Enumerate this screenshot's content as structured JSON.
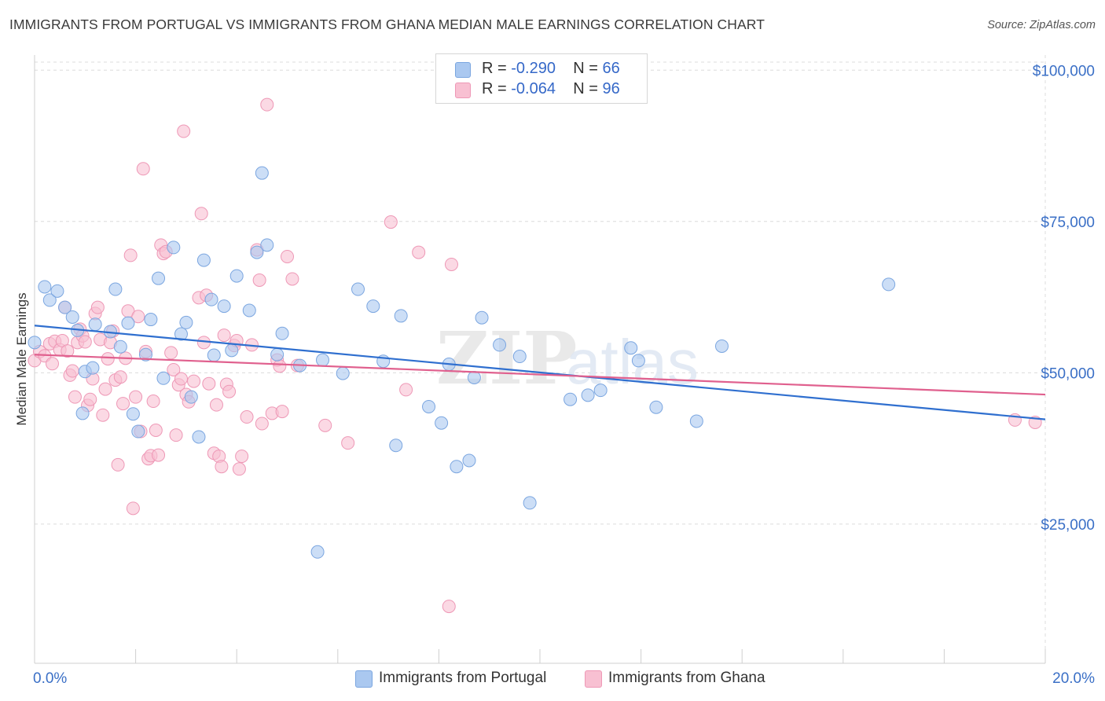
{
  "title": "IMMIGRANTS FROM PORTUGAL VS IMMIGRANTS FROM GHANA MEDIAN MALE EARNINGS CORRELATION CHART",
  "source": "Source: ZipAtlas.com",
  "watermark": "ZIPatlas",
  "legend": {
    "rows": [
      {
        "r_label": "R =",
        "r_value": "-0.290",
        "n_label": "N =",
        "n_value": "66"
      },
      {
        "r_label": "R =",
        "r_value": "-0.064",
        "n_label": "N =",
        "n_value": "96"
      }
    ]
  },
  "bottom_legend": {
    "portugal": "Immigrants from Portugal",
    "ghana": "Immigrants from Ghana"
  },
  "colors": {
    "portugal_fill": "#aac8f0",
    "portugal_stroke": "#7ba6e0",
    "portugal_line": "#2f6fcf",
    "ghana_fill": "#f8c0d2",
    "ghana_stroke": "#ee98b6",
    "ghana_line": "#e0608e",
    "axis_label": "#3a6fc6"
  },
  "chart_data": {
    "type": "scatter",
    "title": "IMMIGRANTS FROM PORTUGAL VS IMMIGRANTS FROM GHANA MEDIAN MALE EARNINGS CORRELATION CHART",
    "xlabel": "",
    "ylabel": "Median Male Earnings",
    "xlim": [
      0,
      20
    ],
    "ylim": [
      2000,
      102500
    ],
    "x_tick_labels": [
      "0.0%",
      "20.0%"
    ],
    "y_ticks": [
      25000,
      50000,
      75000,
      100000
    ],
    "y_tick_labels": [
      "$25,000",
      "$50,000",
      "$75,000",
      "$100,000"
    ],
    "grid": true,
    "legend_position": "top-center",
    "series": [
      {
        "name": "Immigrants from Portugal",
        "r": -0.29,
        "n": 66,
        "trend": [
          [
            0,
            57800
          ],
          [
            20,
            42300
          ]
        ],
        "points": [
          [
            0.0,
            55000
          ],
          [
            0.2,
            64200
          ],
          [
            0.3,
            62000
          ],
          [
            0.45,
            63500
          ],
          [
            0.6,
            60800
          ],
          [
            0.75,
            59200
          ],
          [
            0.85,
            57000
          ],
          [
            0.95,
            43300
          ],
          [
            1.0,
            50200
          ],
          [
            1.15,
            50800
          ],
          [
            1.2,
            58000
          ],
          [
            1.5,
            56800
          ],
          [
            1.6,
            63800
          ],
          [
            1.7,
            54300
          ],
          [
            1.85,
            58200
          ],
          [
            1.95,
            43200
          ],
          [
            2.05,
            40300
          ],
          [
            2.2,
            53000
          ],
          [
            2.3,
            58800
          ],
          [
            2.45,
            65600
          ],
          [
            2.55,
            49100
          ],
          [
            2.75,
            70700
          ],
          [
            2.9,
            56400
          ],
          [
            3.0,
            58300
          ],
          [
            3.1,
            46000
          ],
          [
            3.25,
            39400
          ],
          [
            3.35,
            68600
          ],
          [
            3.5,
            62100
          ],
          [
            3.55,
            52900
          ],
          [
            3.75,
            61000
          ],
          [
            3.9,
            53700
          ],
          [
            4.0,
            66000
          ],
          [
            4.25,
            60300
          ],
          [
            4.4,
            69900
          ],
          [
            4.5,
            83000
          ],
          [
            4.6,
            71100
          ],
          [
            4.8,
            53000
          ],
          [
            4.9,
            56500
          ],
          [
            5.25,
            51200
          ],
          [
            5.6,
            20400
          ],
          [
            5.7,
            52100
          ],
          [
            6.1,
            49900
          ],
          [
            6.4,
            63800
          ],
          [
            6.7,
            61000
          ],
          [
            6.9,
            51900
          ],
          [
            7.15,
            38000
          ],
          [
            7.25,
            59400
          ],
          [
            7.8,
            44400
          ],
          [
            8.05,
            41700
          ],
          [
            8.2,
            51400
          ],
          [
            8.35,
            34500
          ],
          [
            8.6,
            35500
          ],
          [
            8.7,
            49200
          ],
          [
            8.85,
            59100
          ],
          [
            9.2,
            54600
          ],
          [
            9.6,
            52700
          ],
          [
            9.8,
            28500
          ],
          [
            10.6,
            45600
          ],
          [
            10.95,
            46300
          ],
          [
            11.2,
            47100
          ],
          [
            11.8,
            54100
          ],
          [
            11.95,
            52000
          ],
          [
            12.3,
            44300
          ],
          [
            13.1,
            42000
          ],
          [
            13.6,
            54400
          ],
          [
            16.9,
            64600
          ]
        ]
      },
      {
        "name": "Immigrants from Ghana",
        "r": -0.064,
        "n": 96,
        "trend": [
          [
            0,
            53000
          ],
          [
            20,
            46400
          ]
        ],
        "points": [
          [
            0.0,
            52000
          ],
          [
            0.1,
            53500
          ],
          [
            0.2,
            52800
          ],
          [
            0.3,
            54800
          ],
          [
            0.35,
            51500
          ],
          [
            0.4,
            55200
          ],
          [
            0.5,
            53800
          ],
          [
            0.55,
            55300
          ],
          [
            0.6,
            60800
          ],
          [
            0.65,
            53600
          ],
          [
            0.7,
            49600
          ],
          [
            0.75,
            50300
          ],
          [
            0.8,
            46000
          ],
          [
            0.85,
            55000
          ],
          [
            0.9,
            57200
          ],
          [
            0.95,
            56100
          ],
          [
            1.0,
            55100
          ],
          [
            1.05,
            44600
          ],
          [
            1.1,
            45600
          ],
          [
            1.15,
            49000
          ],
          [
            1.2,
            59800
          ],
          [
            1.25,
            60800
          ],
          [
            1.3,
            55500
          ],
          [
            1.35,
            43000
          ],
          [
            1.4,
            47300
          ],
          [
            1.45,
            52300
          ],
          [
            1.5,
            55000
          ],
          [
            1.55,
            56900
          ],
          [
            1.6,
            48800
          ],
          [
            1.65,
            34800
          ],
          [
            1.7,
            49300
          ],
          [
            1.75,
            44900
          ],
          [
            1.8,
            52400
          ],
          [
            1.85,
            60200
          ],
          [
            1.9,
            69400
          ],
          [
            1.95,
            27600
          ],
          [
            2.0,
            46000
          ],
          [
            2.05,
            59300
          ],
          [
            2.1,
            40300
          ],
          [
            2.15,
            83700
          ],
          [
            2.2,
            53500
          ],
          [
            2.25,
            35800
          ],
          [
            2.3,
            36300
          ],
          [
            2.35,
            45300
          ],
          [
            2.4,
            40500
          ],
          [
            2.45,
            36400
          ],
          [
            2.5,
            71100
          ],
          [
            2.55,
            69700
          ],
          [
            2.6,
            70000
          ],
          [
            2.7,
            53300
          ],
          [
            2.75,
            50500
          ],
          [
            2.8,
            39700
          ],
          [
            2.85,
            48000
          ],
          [
            2.9,
            49000
          ],
          [
            2.95,
            89900
          ],
          [
            3.0,
            46400
          ],
          [
            3.05,
            45200
          ],
          [
            3.15,
            48600
          ],
          [
            3.25,
            62400
          ],
          [
            3.3,
            76300
          ],
          [
            3.35,
            55000
          ],
          [
            3.4,
            62800
          ],
          [
            3.45,
            48200
          ],
          [
            3.55,
            36700
          ],
          [
            3.6,
            44700
          ],
          [
            3.65,
            36200
          ],
          [
            3.7,
            34500
          ],
          [
            3.75,
            56200
          ],
          [
            3.8,
            48100
          ],
          [
            3.85,
            46900
          ],
          [
            3.95,
            54500
          ],
          [
            4.0,
            55300
          ],
          [
            4.05,
            34100
          ],
          [
            4.1,
            36200
          ],
          [
            4.2,
            42700
          ],
          [
            4.3,
            54600
          ],
          [
            4.4,
            70300
          ],
          [
            4.45,
            65300
          ],
          [
            4.5,
            41600
          ],
          [
            4.6,
            94300
          ],
          [
            4.7,
            43300
          ],
          [
            4.8,
            52100
          ],
          [
            4.85,
            51100
          ],
          [
            4.9,
            43600
          ],
          [
            5.0,
            69200
          ],
          [
            5.1,
            65500
          ],
          [
            5.2,
            51200
          ],
          [
            5.75,
            41300
          ],
          [
            6.2,
            38400
          ],
          [
            7.05,
            74900
          ],
          [
            7.35,
            47200
          ],
          [
            7.6,
            69900
          ],
          [
            8.2,
            11400
          ],
          [
            8.25,
            67900
          ],
          [
            19.4,
            42200
          ],
          [
            19.8,
            41800
          ]
        ]
      }
    ]
  }
}
